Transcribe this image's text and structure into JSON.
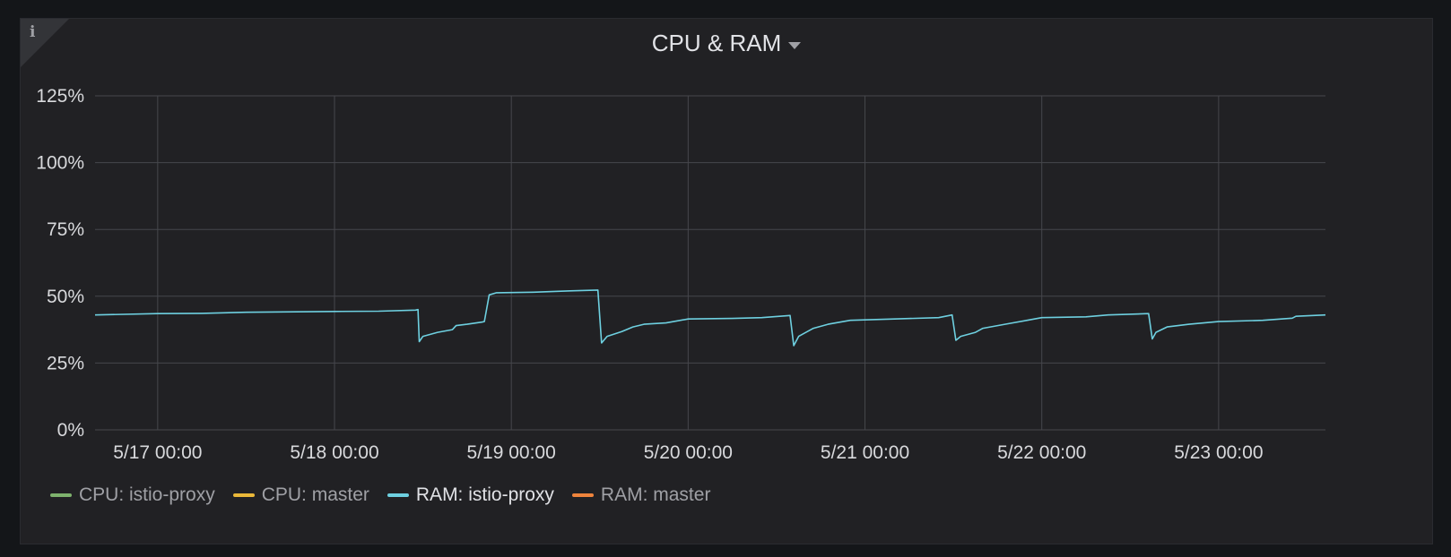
{
  "panel": {
    "title": "CPU & RAM",
    "info_icon": "info-icon",
    "menu_icon": "caret-down-icon"
  },
  "colors": {
    "cpu_istio_proxy": "#7eb26d",
    "cpu_master": "#eab839",
    "ram_istio_proxy": "#6ed0e0",
    "ram_master": "#ef843c",
    "grid": "#46474c",
    "panel_bg": "#212124"
  },
  "legend": [
    {
      "label": "CPU: istio-proxy",
      "color": "#7eb26d"
    },
    {
      "label": "CPU: master",
      "color": "#eab839"
    },
    {
      "label": "RAM: istio-proxy",
      "color": "#6ed0e0"
    },
    {
      "label": "RAM: master",
      "color": "#ef843c"
    }
  ],
  "chart_data": {
    "type": "line",
    "title": "CPU & RAM",
    "xlabel": "",
    "ylabel": "",
    "x_range": [
      "5/16 15:30",
      "5/23 14:30"
    ],
    "ylim": [
      0,
      125
    ],
    "y_unit": "%",
    "y_ticks": [
      0,
      25,
      50,
      75,
      100,
      125
    ],
    "y_tick_labels": [
      "0%",
      "25%",
      "50%",
      "75%",
      "100%",
      "125%"
    ],
    "x_tick_labels": [
      "5/17 00:00",
      "5/18 00:00",
      "5/19 00:00",
      "5/20 00:00",
      "5/21 00:00",
      "5/22 00:00",
      "5/23 00:00"
    ],
    "grid": true,
    "legend_position": "bottom-left",
    "series": [
      {
        "name": "CPU: istio-proxy",
        "color": "#7eb26d",
        "points": []
      },
      {
        "name": "CPU: master",
        "color": "#eab839",
        "points": []
      },
      {
        "name": "RAM: istio-proxy",
        "color": "#6ed0e0",
        "points": [
          [
            "5/16 15:30",
            43.0
          ],
          [
            "5/17 00:00",
            43.5
          ],
          [
            "5/17 06:00",
            43.6
          ],
          [
            "5/17 12:00",
            44.0
          ],
          [
            "5/18 00:00",
            44.3
          ],
          [
            "5/18 06:00",
            44.4
          ],
          [
            "5/18 11:00",
            44.8
          ],
          [
            "5/18 11:20",
            45.0
          ],
          [
            "5/18 11:30",
            33.0
          ],
          [
            "5/18 12:00",
            35.0
          ],
          [
            "5/18 14:00",
            36.5
          ],
          [
            "5/18 16:00",
            37.5
          ],
          [
            "5/18 16:30",
            39.0
          ],
          [
            "5/18 18:00",
            39.5
          ],
          [
            "5/18 20:00",
            40.3
          ],
          [
            "5/18 20:20",
            40.5
          ],
          [
            "5/18 21:00",
            50.5
          ],
          [
            "5/18 22:00",
            51.3
          ],
          [
            "5/19 03:00",
            51.5
          ],
          [
            "5/19 08:00",
            52.0
          ],
          [
            "5/19 11:45",
            52.3
          ],
          [
            "5/19 12:15",
            32.5
          ],
          [
            "5/19 13:00",
            35.0
          ],
          [
            "5/19 15:00",
            36.8
          ],
          [
            "5/19 16:30",
            38.5
          ],
          [
            "5/19 18:00",
            39.5
          ],
          [
            "5/19 21:00",
            40.0
          ],
          [
            "5/20 00:00",
            41.5
          ],
          [
            "5/20 06:00",
            41.7
          ],
          [
            "5/20 10:00",
            42.0
          ],
          [
            "5/20 13:50",
            42.8
          ],
          [
            "5/20 14:20",
            31.5
          ],
          [
            "5/20 15:00",
            35.0
          ],
          [
            "5/20 17:00",
            38.0
          ],
          [
            "5/20 19:00",
            39.5
          ],
          [
            "5/20 22:00",
            41.0
          ],
          [
            "5/21 04:00",
            41.5
          ],
          [
            "5/21 10:00",
            42.0
          ],
          [
            "5/21 11:50",
            43.0
          ],
          [
            "5/21 12:20",
            33.5
          ],
          [
            "5/21 13:00",
            35.0
          ],
          [
            "5/21 15:00",
            36.5
          ],
          [
            "5/21 16:00",
            38.0
          ],
          [
            "5/21 19:00",
            39.5
          ],
          [
            "5/21 22:00",
            41.0
          ],
          [
            "5/22 00:00",
            42.0
          ],
          [
            "5/22 06:00",
            42.3
          ],
          [
            "5/22 09:00",
            43.0
          ],
          [
            "5/22 14:30",
            43.5
          ],
          [
            "5/22 15:00",
            34.0
          ],
          [
            "5/22 15:30",
            36.5
          ],
          [
            "5/22 17:00",
            38.5
          ],
          [
            "5/22 20:00",
            39.5
          ],
          [
            "5/23 00:00",
            40.5
          ],
          [
            "5/23 06:00",
            41.0
          ],
          [
            "5/23 10:00",
            41.8
          ],
          [
            "5/23 10:30",
            42.5
          ],
          [
            "5/23 14:30",
            43.0
          ]
        ]
      },
      {
        "name": "RAM: master",
        "color": "#ef843c",
        "points": []
      }
    ]
  }
}
